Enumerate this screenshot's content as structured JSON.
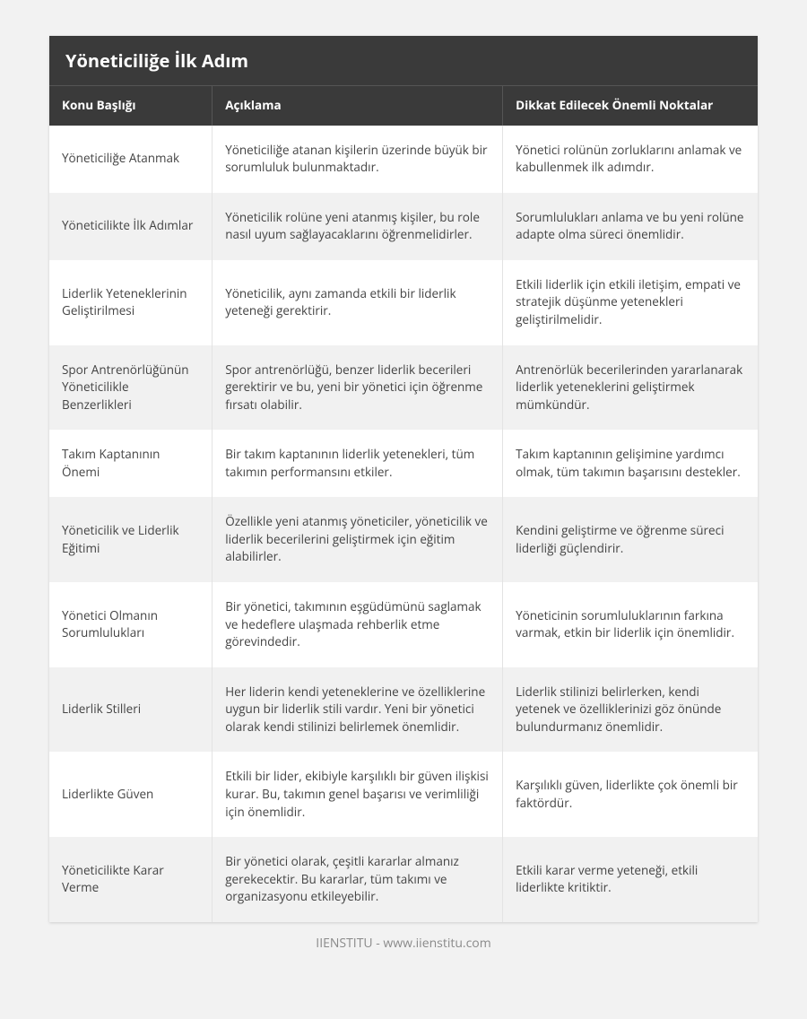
{
  "title": "Yöneticiliğe İlk Adım",
  "columns": [
    "Konu Başlığı",
    "Açıklama",
    "Dikkat Edilecek Önemli Noktalar"
  ],
  "rows": [
    {
      "c0": "Yöneticiliğe Atanmak",
      "c1": "Yöneticiliğe atanan kişilerin üzerinde büyük bir sorumluluk bulunmaktadır.",
      "c2": "Yönetici rolünün zorluklarını anlamak ve kabullenmek ilk adımdır."
    },
    {
      "c0": "Yöneticilikte İlk Adımlar",
      "c1": "Yöneticilik rolüne yeni atanmış kişiler, bu role nasıl uyum sağlayacaklarını öğrenmelidirler.",
      "c2": "Sorumlulukları anlama ve bu yeni rolüne adapte olma süreci önemlidir."
    },
    {
      "c0": "Liderlik Yeteneklerinin Geliştirilmesi",
      "c1": "Yöneticilik, aynı zamanda etkili bir liderlik yeteneği gerektirir.",
      "c2": "Etkili liderlik için etkili iletişim, empati ve stratejik düşünme yetenekleri geliştirilmelidir."
    },
    {
      "c0": "Spor Antrenörlüğünün Yöneticilikle Benzerlikleri",
      "c1": "Spor antrenörlüğü, benzer liderlik becerileri gerektirir ve bu, yeni bir yönetici için öğrenme fırsatı olabilir.",
      "c2": "Antrenörlük becerilerinden yararlanarak liderlik yeteneklerini geliştirmek mümkündür."
    },
    {
      "c0": "Takım Kaptanının Önemi",
      "c1": "Bir takım kaptanının liderlik yetenekleri, tüm takımın performansını etkiler.",
      "c2": "Takım kaptanının gelişimine yardımcı olmak, tüm takımın başarısını destekler."
    },
    {
      "c0": "Yöneticilik ve Liderlik Eğitimi",
      "c1": "Özellikle yeni atanmış yöneticiler, yöneticilik ve liderlik becerilerini geliştirmek için eğitim alabilirler.",
      "c2": "Kendini geliştirme ve öğrenme süreci liderliği güçlendirir."
    },
    {
      "c0": "Yönetici Olmanın Sorumlulukları",
      "c1": "Bir yönetici, takımının eşgüdümünü saglamak ve hedeflere ulaşmada rehberlik etme görevindedir.",
      "c2": "Yöneticinin sorumluluklarının farkına varmak, etkin bir liderlik için önemlidir."
    },
    {
      "c0": "Liderlik Stilleri",
      "c1": "Her liderin kendi yeteneklerine ve özelliklerine uygun bir liderlik stili vardır. Yeni bir yönetici olarak kendi stilinizi belirlemek önemlidir.",
      "c2": "Liderlik stilinizi belirlerken, kendi yetenek ve özelliklerinizi göz önünde bulundurmanız önemlidir."
    },
    {
      "c0": "Liderlikte Güven",
      "c1": "Etkili bir lider, ekibiyle karşılıklı bir güven ilişkisi kurar. Bu, takımın genel başarısı ve verimliliği için önemlidir.",
      "c2": "Karşılıklı güven, liderlikte çok önemli bir faktördür."
    },
    {
      "c0": "Yöneticilikte Karar Verme",
      "c1": "Bir yönetici olarak, çeşitli kararlar almanız gerekecektir. Bu kararlar, tüm takımı ve organizasyonu etkileyebilir.",
      "c2": "Etkili karar verme yeteneği, etkili liderlikte kritiktir."
    }
  ],
  "footer": "IIENSTITU - www.iienstitu.com"
}
